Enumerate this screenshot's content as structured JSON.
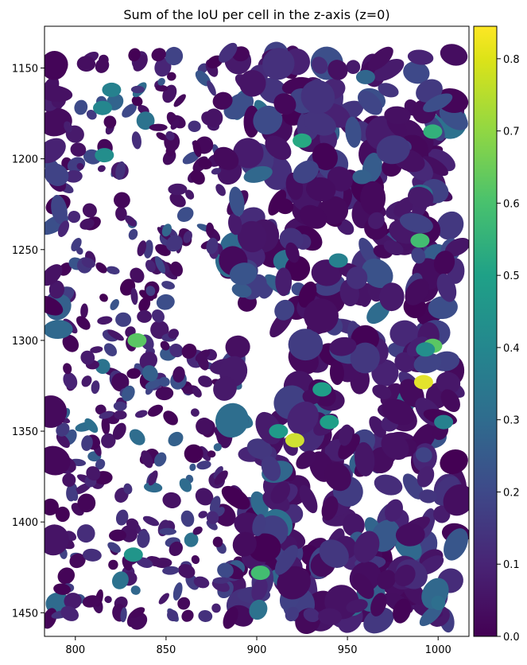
{
  "chart_data": {
    "type": "heatmap",
    "title": "Sum of the IoU per cell in the z-axis (z=0)",
    "xlabel": "",
    "ylabel": "",
    "xlim": [
      783,
      1017
    ],
    "ylim": [
      1463,
      1127
    ],
    "y_axis_inverted": true,
    "xticks": [
      800,
      850,
      900,
      950,
      1000
    ],
    "yticks": [
      1150,
      1200,
      1250,
      1300,
      1350,
      1400,
      1450
    ],
    "colorbar": {
      "colormap": "viridis",
      "range": [
        0.0,
        0.845
      ],
      "ticks": [
        0.0,
        0.1,
        0.2,
        0.3,
        0.4,
        0.5,
        0.6,
        0.7,
        0.8
      ]
    },
    "notable_cells": [
      {
        "x": 992,
        "y": 1323,
        "value": 0.82
      },
      {
        "x": 921,
        "y": 1355,
        "value": 0.8
      },
      {
        "x": 997,
        "y": 1303,
        "value": 0.66
      },
      {
        "x": 834,
        "y": 1300,
        "value": 0.66
      },
      {
        "x": 990,
        "y": 1245,
        "value": 0.62
      },
      {
        "x": 902,
        "y": 1428,
        "value": 0.62
      },
      {
        "x": 997,
        "y": 1185,
        "value": 0.58
      },
      {
        "x": 925,
        "y": 1190,
        "value": 0.55
      },
      {
        "x": 940,
        "y": 1345,
        "value": 0.52
      },
      {
        "x": 912,
        "y": 1350,
        "value": 0.5
      },
      {
        "x": 936,
        "y": 1327,
        "value": 0.52
      },
      {
        "x": 832,
        "y": 1418,
        "value": 0.48
      },
      {
        "x": 816,
        "y": 1198,
        "value": 0.45
      },
      {
        "x": 815,
        "y": 1172,
        "value": 0.42
      },
      {
        "x": 820,
        "y": 1162,
        "value": 0.4
      },
      {
        "x": 945,
        "y": 1256,
        "value": 0.4
      },
      {
        "x": 960,
        "y": 1155,
        "value": 0.3
      },
      {
        "x": 993,
        "y": 1305,
        "value": 0.45
      },
      {
        "x": 1003,
        "y": 1345,
        "value": 0.4
      },
      {
        "x": 958,
        "y": 1210,
        "value": 0.28
      }
    ]
  }
}
